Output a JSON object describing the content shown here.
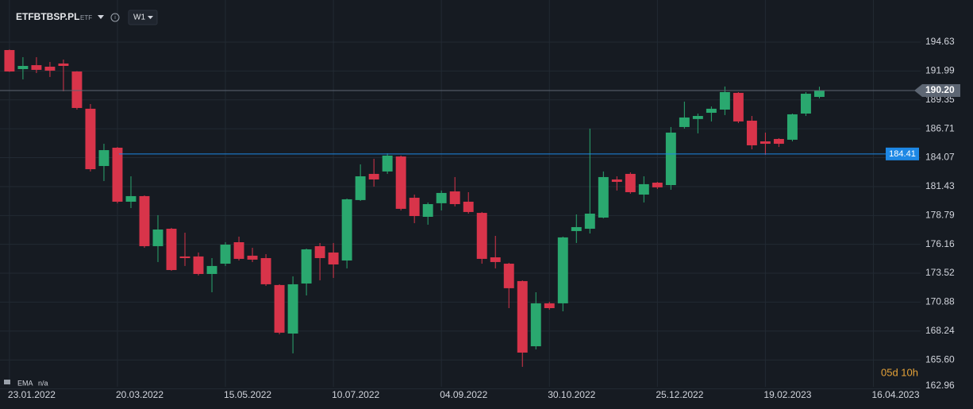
{
  "chart_data": {
    "type": "candlestick",
    "title": "ETFBTBSP.PL",
    "badge": "ETF",
    "timeframe": "W1",
    "indicator": "EMA",
    "indicator_value": "n/a",
    "countdown": "05d 10h",
    "up_color": "#2aa86f",
    "down_color": "#d8344a",
    "ylim": [
      162.57,
      198.47
    ],
    "yticks": [
      {
        "value": 162.96,
        "label": "162.96"
      },
      {
        "value": 165.6,
        "label": "165.60"
      },
      168.24,
      170.88,
      173.52,
      176.16,
      178.79,
      181.43,
      184.07,
      186.71,
      189.35,
      191.99,
      194.63
    ],
    "xlim": [
      -0.7,
      67.5
    ],
    "xticks": [
      {
        "value": 0,
        "label": "23.01.2022"
      },
      {
        "value": 8,
        "label": "20.03.2022"
      },
      {
        "value": 16,
        "label": "15.05.2022"
      },
      {
        "value": 24,
        "label": "10.07.2022"
      },
      {
        "value": 32,
        "label": "04.09.2022"
      },
      {
        "value": 40,
        "label": "30.10.2022"
      },
      {
        "value": 48,
        "label": "25.12.2022"
      },
      {
        "value": 56,
        "label": "19.02.2023"
      },
      {
        "value": 64,
        "label": "16.04.2023"
      }
    ],
    "grid": true,
    "last_price": {
      "value": 190.2,
      "label": "190.20",
      "color": "#5d6673"
    },
    "alert_line": {
      "value": 184.41,
      "color": "#1e88e5"
    },
    "open": [
      193.9,
      192.16,
      192.52,
      192.38,
      192.67,
      191.94,
      188.54,
      183.31,
      184.98,
      180.05,
      180.56,
      175.99,
      177.58,
      175.05,
      175.05,
      173.45,
      174.39,
      176.35,
      175.12,
      174.9,
      172.44,
      168.01,
      172.58,
      175.99,
      175.41,
      174.68,
      180.2,
      182.59,
      182.81,
      184.18,
      180.41,
      178.67,
      179.91,
      180.99,
      180.05,
      179.03,
      174.97,
      174.39,
      172.8,
      166.85,
      170.77,
      170.77,
      177.37,
      177.58,
      178.6,
      182.08,
      182.59,
      180.7,
      181.79,
      181.57,
      186.87,
      187.6,
      188.17,
      188.46,
      189.99,
      187.45,
      185.56,
      185.78,
      185.71,
      188.1,
      189.62
    ],
    "high": [
      193.95,
      193.25,
      193.25,
      192.81,
      193.03,
      191.97,
      188.97,
      185.34,
      185.05,
      182.37,
      180.63,
      178.82,
      177.66,
      177.22,
      175.41,
      174.9,
      176.35,
      176.86,
      175.84,
      175.26,
      172.51,
      173.23,
      175.77,
      176.28,
      176.28,
      180.34,
      183.46,
      183.97,
      184.47,
      184.26,
      180.7,
      179.98,
      181.07,
      182.3,
      180.92,
      179.11,
      176.93,
      174.47,
      172.87,
      171.78,
      170.91,
      176.86,
      178.89,
      186.72,
      182.81,
      182.37,
      182.73,
      182.37,
      181.86,
      186.87,
      189.19,
      188.1,
      188.75,
      190.57,
      190.06,
      187.88,
      186.36,
      185.85,
      188.1,
      190.06,
      190.55
    ],
    "low": [
      191.9,
      191.22,
      191.8,
      191.44,
      190.13,
      188.46,
      182.81,
      181.94,
      179.9,
      179.47,
      175.84,
      174.54,
      173.74,
      174.18,
      173.31,
      171.78,
      174.18,
      174.68,
      174.54,
      172.36,
      167.94,
      166.2,
      171.49,
      172.87,
      173.09,
      173.96,
      180.12,
      181.43,
      182.59,
      179.25,
      178.09,
      177.95,
      179.25,
      179.62,
      178.96,
      174.39,
      173.96,
      170.33,
      164.97,
      166.56,
      170.19,
      170.04,
      176.28,
      177.15,
      178.53,
      181.07,
      180.78,
      179.98,
      181.21,
      181.14,
      186.72,
      186.29,
      187.38,
      187.96,
      187.23,
      184.84,
      184.33,
      185.05,
      185.56,
      187.88,
      189.48
    ],
    "close": [
      191.94,
      192.45,
      192.09,
      192.02,
      192.45,
      188.61,
      183.02,
      184.76,
      180.05,
      180.56,
      175.99,
      177.51,
      173.81,
      174.9,
      173.45,
      174.18,
      176.13,
      174.83,
      174.76,
      172.51,
      168.09,
      172.51,
      175.7,
      174.9,
      174.32,
      180.27,
      182.37,
      182.08,
      184.26,
      179.4,
      178.74,
      179.83,
      180.85,
      179.83,
      179.11,
      174.83,
      174.54,
      172.15,
      166.27,
      170.77,
      170.33,
      176.79,
      177.73,
      178.96,
      182.3,
      181.86,
      180.92,
      181.65,
      181.36,
      186.36,
      187.74,
      187.88,
      188.54,
      190.06,
      187.38,
      185.2,
      185.34,
      185.34,
      188.03,
      189.91,
      190.2
    ]
  }
}
